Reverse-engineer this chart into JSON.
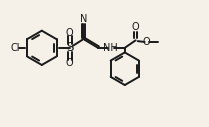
{
  "bg_color": "#f5f0e8",
  "line_color": "#1a1a1a",
  "line_width": 1.4,
  "font_size": 6.5,
  "xlim": [
    0,
    10
  ],
  "ylim": [
    0,
    6
  ]
}
